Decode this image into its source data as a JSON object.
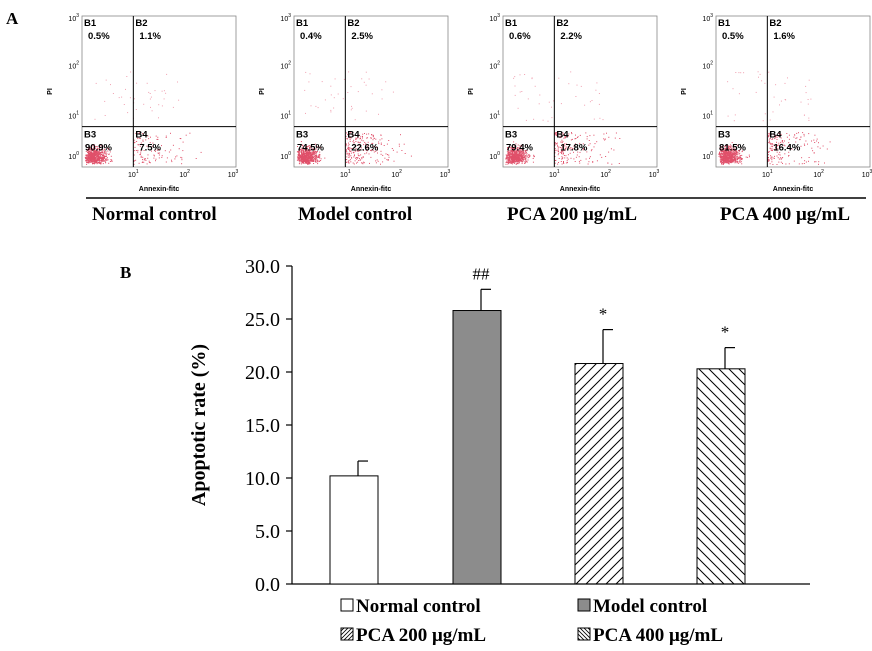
{
  "panel_a": {
    "label": "A",
    "x_axis_label": "Annexin-fitc",
    "y_axis_label": "PI",
    "tick_labels": [
      "10",
      "10",
      "10",
      "10"
    ],
    "tick_exponents": [
      "0",
      "1",
      "2",
      "3"
    ],
    "dot_color": "#e0506a",
    "plots": [
      {
        "name": "Normal control",
        "quadrants": {
          "B1": "0.5%",
          "B2": "1.1%",
          "B3": "90.9%",
          "B4": "7.5%"
        }
      },
      {
        "name": "Model control",
        "quadrants": {
          "B1": "0.4%",
          "B2": "2.5%",
          "B3": "74.5%",
          "B4": "22.6%"
        }
      },
      {
        "name": "PCA 200 μg/mL",
        "quadrants": {
          "B1": "0.6%",
          "B2": "2.2%",
          "B3": "79.4%",
          "B4": "17.8%"
        }
      },
      {
        "name": "PCA 400 μg/mL",
        "quadrants": {
          "B1": "0.5%",
          "B2": "1.6%",
          "B3": "81.5%",
          "B4": "16.4%"
        }
      }
    ]
  },
  "chart_data": {
    "type": "bar",
    "label": "B",
    "ylabel": "Apoptotic rate (%)",
    "ylim": [
      0,
      30
    ],
    "y_ticks": [
      "0.0",
      "5.0",
      "10.0",
      "15.0",
      "20.0",
      "25.0",
      "30.0"
    ],
    "legend": "bottom",
    "series": [
      {
        "name": "Normal control",
        "value": 10.2,
        "error": 1.4,
        "annotation": "",
        "fill": "white"
      },
      {
        "name": "Model control",
        "value": 25.8,
        "error": 2.0,
        "annotation": "##",
        "fill": "gray",
        "color": "#8c8c8c"
      },
      {
        "name": "PCA 200 μg/mL",
        "value": 20.8,
        "error": 3.2,
        "annotation": "*",
        "fill": "hatch-forward"
      },
      {
        "name": "PCA 400 μg/mL",
        "value": 20.3,
        "error": 2.0,
        "annotation": "*",
        "fill": "hatch-back"
      }
    ]
  }
}
